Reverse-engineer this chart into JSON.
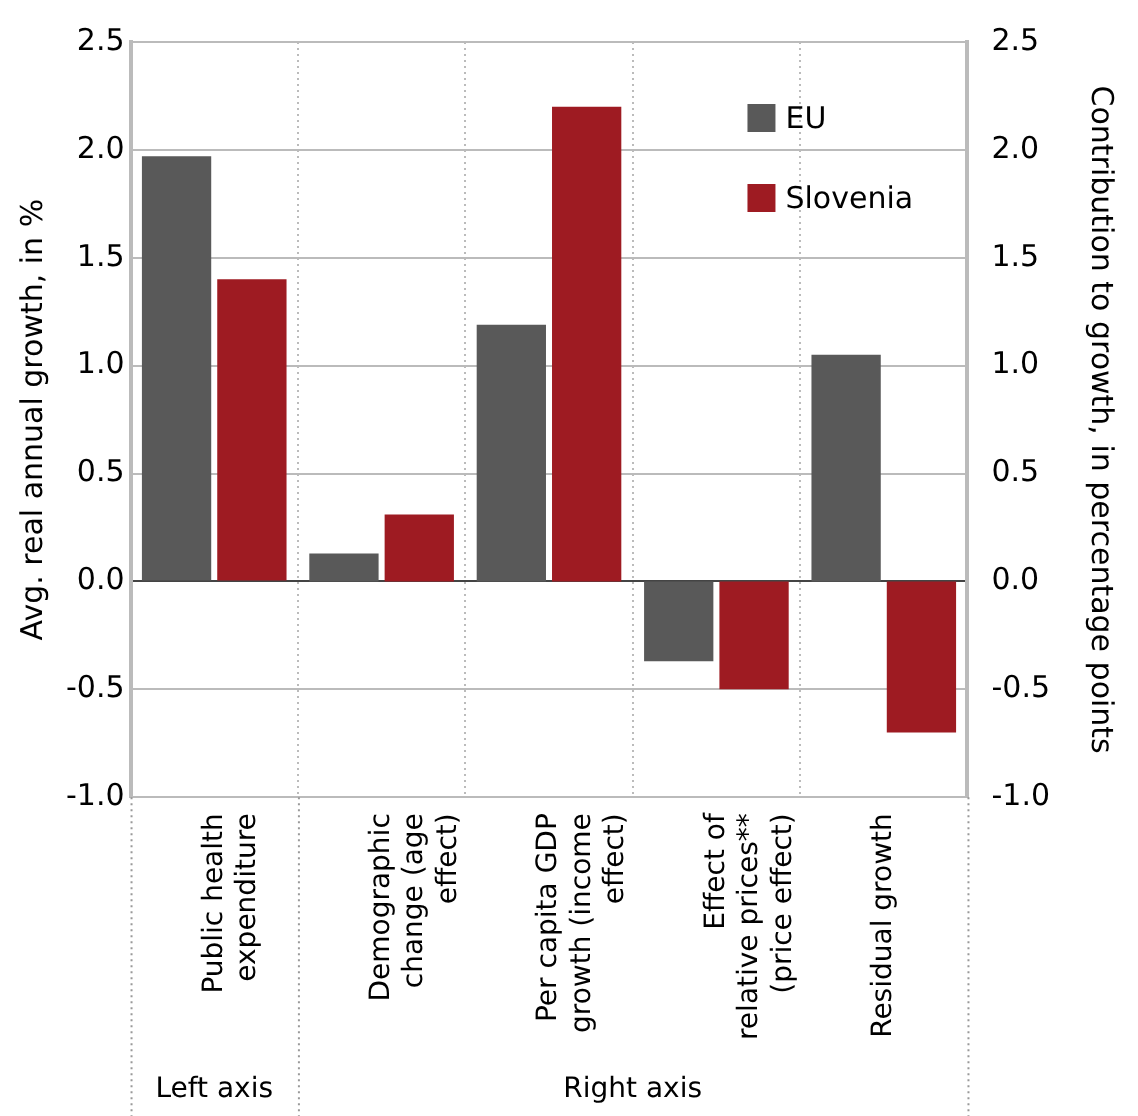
{
  "chart_data": {
    "type": "bar",
    "categories": [
      "Public health expenditure",
      "Demographic change (age effect)",
      "Per capita GDP growth (income effect)",
      "Effect of relative prices** (price effect)",
      "Residual growth"
    ],
    "series": [
      {
        "name": "EU",
        "color": "#595959",
        "values": [
          1.97,
          null,
          null,
          null,
          null
        ]
      },
      {
        "name": "Slovenia",
        "color": "#9e1b22",
        "values": [
          1.4,
          null,
          null,
          null,
          null
        ]
      },
      {
        "color": "#595959",
        "axis": "y2",
        "values": [
          null,
          0.13,
          1.19,
          -0.37,
          1.05
        ]
      },
      {
        "color": "#9e1b22",
        "axis": "y2",
        "values": [
          null,
          0.31,
          2.2,
          -0.5,
          -0.7
        ]
      }
    ],
    "ylabel": "Avg. real annual growth, in %",
    "y2label": "Contribution to growth, in percentage points",
    "ylim": [
      -1,
      2.5
    ],
    "yticks": [
      {
        "value": -1,
        "label": "-1.0"
      },
      {
        "value": -0.5,
        "label": "-0.5"
      },
      {
        "value": 0,
        "label": "0.0"
      },
      {
        "value": 0.5,
        "label": "0.5"
      },
      {
        "value": 1,
        "label": "1.0"
      },
      {
        "value": 1.5,
        "label": "1.5"
      },
      {
        "value": 2,
        "label": "2.0"
      },
      {
        "value": 2.5,
        "label": "2.5"
      }
    ],
    "y2lim": [
      -1,
      2.5
    ],
    "y2ticks": [
      {
        "value": -1,
        "label": "-1.0"
      },
      {
        "value": -0.5,
        "label": "-0.5"
      },
      {
        "value": 0,
        "label": "0.0"
      },
      {
        "value": 0.5,
        "label": "0.5"
      },
      {
        "value": 1,
        "label": "1.0"
      },
      {
        "value": 1.5,
        "label": "1.5"
      },
      {
        "value": 2,
        "label": "2.0"
      },
      {
        "value": 2.5,
        "label": "2.5"
      }
    ],
    "annotations": [
      "Left axis",
      "Right axis"
    ],
    "grid": true,
    "legend": "top right"
  }
}
